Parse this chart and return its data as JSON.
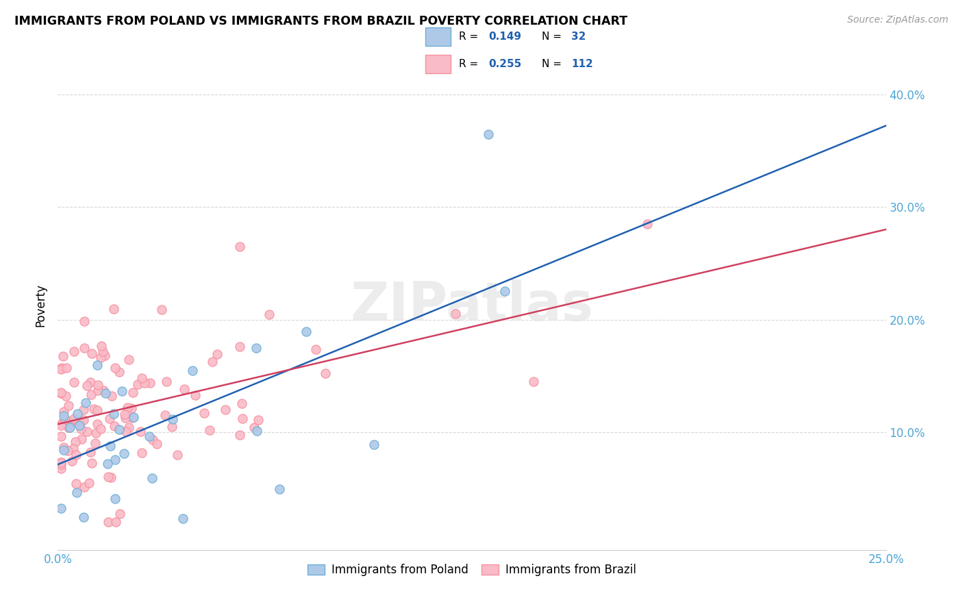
{
  "title": "IMMIGRANTS FROM POLAND VS IMMIGRANTS FROM BRAZIL POVERTY CORRELATION CHART",
  "source": "Source: ZipAtlas.com",
  "ylabel": "Poverty",
  "xlim": [
    0.0,
    0.25
  ],
  "ylim": [
    -0.005,
    0.43
  ],
  "yticks": [
    0.1,
    0.2,
    0.3,
    0.4
  ],
  "ytick_labels": [
    "10.0%",
    "20.0%",
    "30.0%",
    "40.0%"
  ],
  "xticks": [
    0.0,
    0.05,
    0.1,
    0.15,
    0.2,
    0.25
  ],
  "poland_color_edge": "#6baed6",
  "poland_color_fill": "#aec9e8",
  "brazil_color_edge": "#f78fa0",
  "brazil_color_fill": "#f9bbc7",
  "trend_poland_color": "#2060b0",
  "trend_brazil_color": "#d04060",
  "R_poland": 0.149,
  "N_poland": 32,
  "R_brazil": 0.255,
  "N_brazil": 112,
  "legend_poland": "Immigrants from Poland",
  "legend_brazil": "Immigrants from Brazil",
  "watermark": "ZIPatlas",
  "ytick_color": "#4da6d6",
  "xtick_label_color": "#4da6d6",
  "grid_color": "#d8d8d8",
  "title_fontsize": 12.5,
  "source_fontsize": 10,
  "scatter_size": 90,
  "trend_linewidth": 1.8
}
